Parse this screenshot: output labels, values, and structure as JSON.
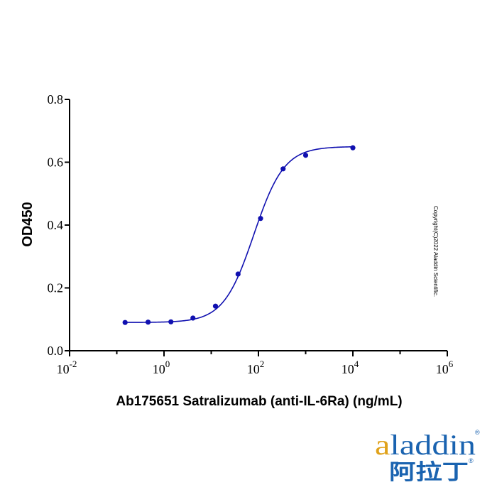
{
  "chart_data": {
    "type": "scatter",
    "title": "",
    "xlabel": "Ab175651 Satralizumab (anti-IL-6Ra) (ng/mL)",
    "ylabel": "OD450",
    "xscale": "log",
    "xlim": [
      0.01,
      1000000
    ],
    "ylim": [
      0.0,
      0.8
    ],
    "x_ticks": [
      {
        "base": "10",
        "exp": "-2",
        "value": 0.01
      },
      {
        "base": "10",
        "exp": "0",
        "value": 1
      },
      {
        "base": "10",
        "exp": "2",
        "value": 100
      },
      {
        "base": "10",
        "exp": "4",
        "value": 10000
      },
      {
        "base": "10",
        "exp": "6",
        "value": 1000000
      }
    ],
    "y_ticks": [
      "0.0",
      "0.2",
      "0.4",
      "0.6",
      "0.8"
    ],
    "y_tick_values": [
      0.0,
      0.2,
      0.4,
      0.6,
      0.8
    ],
    "grid": false,
    "legend": "none",
    "series": [
      {
        "color": "#1010b0",
        "points": [
          {
            "x": 0.15,
            "y": 0.09
          },
          {
            "x": 0.46,
            "y": 0.091
          },
          {
            "x": 1.4,
            "y": 0.092
          },
          {
            "x": 4.1,
            "y": 0.104
          },
          {
            "x": 12.3,
            "y": 0.142
          },
          {
            "x": 37,
            "y": 0.244
          },
          {
            "x": 111,
            "y": 0.421
          },
          {
            "x": 333,
            "y": 0.579
          },
          {
            "x": 1000,
            "y": 0.622
          },
          {
            "x": 10000,
            "y": 0.646
          }
        ],
        "fit": {
          "model": "4PL",
          "bottom": 0.09,
          "top": 0.65,
          "ec50": 80,
          "hill": 1.35
        }
      }
    ]
  },
  "copyright": "Copyright(C)2022 Aladdin Scientific.",
  "brand": {
    "latin": "aladdin",
    "cjk": "阿拉丁",
    "registered": "®",
    "color_primary": "#1a63b0",
    "color_accent": "#e0a21a"
  }
}
